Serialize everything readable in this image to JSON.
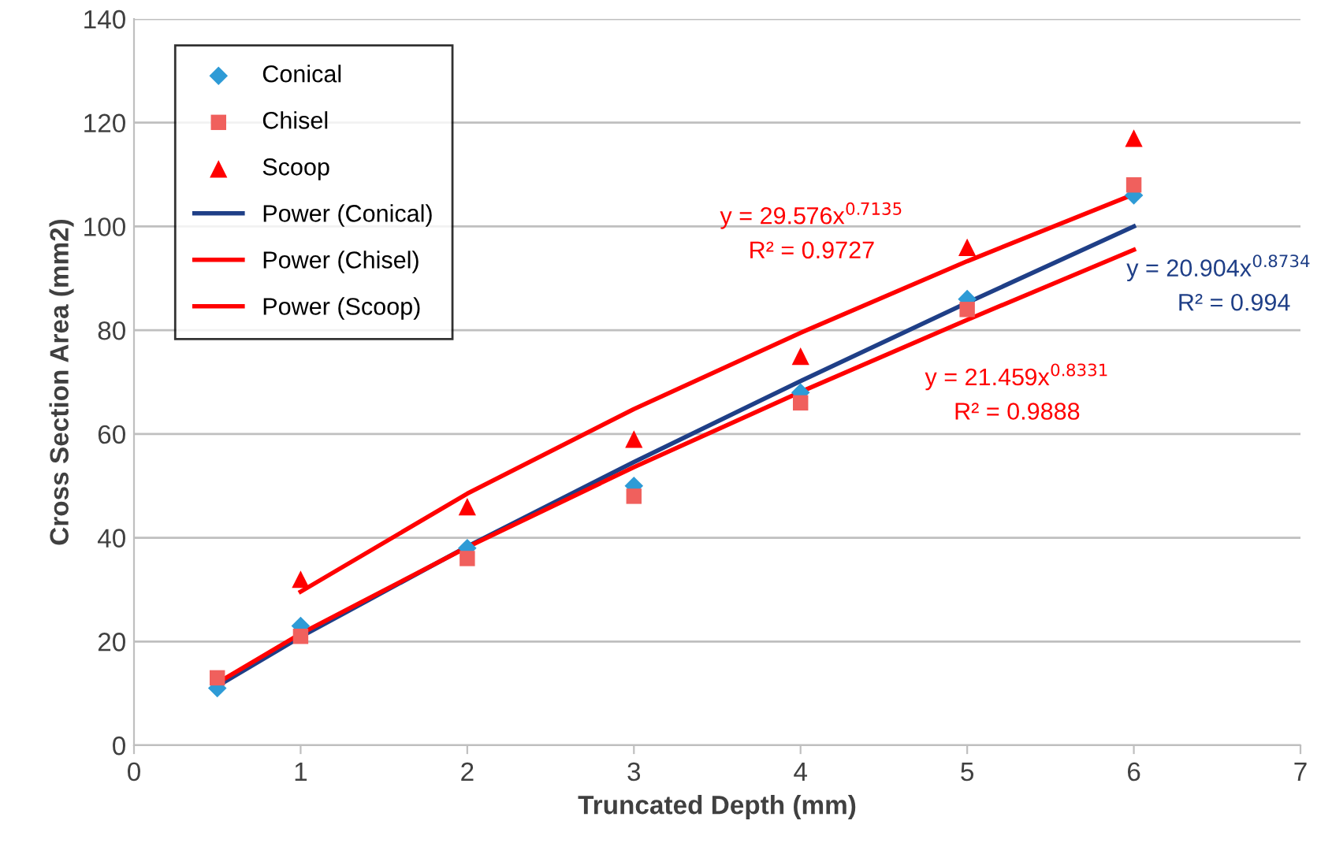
{
  "chart_data": {
    "type": "scatter",
    "xlabel": "Truncated Depth (mm)",
    "ylabel": "Cross Section Area (mm2)",
    "xlim": [
      0,
      7
    ],
    "xticks": [
      0,
      1,
      2,
      3,
      4,
      5,
      6,
      7
    ],
    "ylim": [
      0,
      140
    ],
    "yticks": [
      0,
      20,
      40,
      60,
      80,
      100,
      120,
      140
    ],
    "grid": "y",
    "legend": "top left",
    "series": [
      {
        "name": "Conical",
        "marker": "diamond",
        "color": "#2e9bd6",
        "x": [
          0.5,
          1,
          2,
          3,
          4,
          5,
          6
        ],
        "values": [
          11,
          23,
          38,
          50,
          68,
          86,
          106
        ]
      },
      {
        "name": "Chisel",
        "marker": "square",
        "color": "#f0605d",
        "x": [
          0.5,
          1,
          2,
          3,
          4,
          5,
          6
        ],
        "values": [
          13,
          21,
          36,
          48,
          66,
          84,
          108
        ]
      },
      {
        "name": "Scoop",
        "marker": "triangle",
        "color": "#ff0000",
        "x": [
          1,
          2,
          3,
          4,
          5,
          6
        ],
        "values": [
          32,
          46,
          59,
          75,
          96,
          117
        ]
      },
      {
        "name": "Power (Conical)",
        "type": "line",
        "marker": "none",
        "color": "#1f3f87",
        "x": [
          0.5,
          1,
          2,
          3,
          4,
          5,
          6
        ],
        "values": [
          11.4,
          20.9,
          38.3,
          54.6,
          70.2,
          85.3,
          100.0
        ]
      },
      {
        "name": "Power (Chisel)",
        "type": "line",
        "marker": "none",
        "color": "#ff0000",
        "x": [
          0.5,
          1,
          2,
          3,
          4,
          5,
          6
        ],
        "values": [
          12.0,
          21.5,
          38.2,
          53.6,
          68.1,
          82.0,
          95.5
        ]
      },
      {
        "name": "Power (Scoop)",
        "type": "line",
        "marker": "none",
        "color": "#ff0000",
        "x": [
          1,
          2,
          3,
          4,
          5,
          6
        ],
        "values": [
          29.6,
          48.5,
          64.8,
          79.5,
          93.3,
          106.2
        ]
      }
    ],
    "annotations": [
      "y = 20.904x$^{0.8734}$",
      "R² = 0.994",
      "y = 21.459x$^{0.8331}$",
      "R² = 0.9888",
      "y = 29.576x$^{0.7135}$",
      "R² = 0.9727"
    ]
  }
}
